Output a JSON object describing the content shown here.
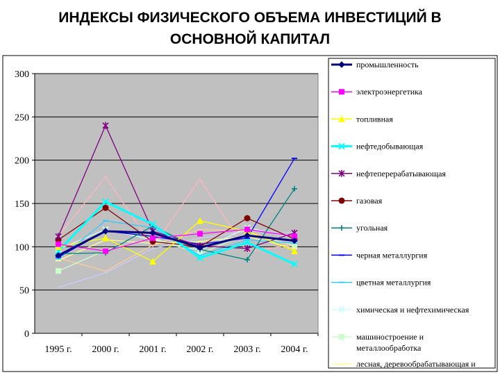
{
  "slide": {
    "title_line1": "ИНДЕКСЫ ФИЗИЧЕСКОГО ОБЪЕМА ИНВЕСТИЦИЙ В",
    "title_line2": "ОСНОВНОЙ КАПИТАЛ"
  },
  "chart_data": {
    "type": "line",
    "title": "",
    "xlabel": "",
    "ylabel": "",
    "ylim": [
      0,
      300
    ],
    "yticks": [
      0,
      50,
      100,
      150,
      200,
      250,
      300
    ],
    "grid": true,
    "plot_background": "#c0c0c0",
    "legend_position": "right",
    "categories": [
      "1995 г.",
      "2000 г.",
      "2001 г.",
      "2002 г.",
      "2003 г.",
      "2004 г."
    ],
    "series": [
      {
        "name": "промышленность",
        "color": "#000080",
        "marker": "diamond",
        "values": [
          90,
          118,
          116,
          99,
          113,
          107
        ]
      },
      {
        "name": "электроэнергетика",
        "color": "#ff00ff",
        "marker": "square",
        "values": [
          103,
          95,
          110,
          115,
          120,
          112
        ]
      },
      {
        "name": "топливная",
        "color": "#ffff00",
        "marker": "triangle",
        "values": [
          100,
          110,
          83,
          130,
          118,
          95
        ]
      },
      {
        "name": "нефтедобывающая",
        "color": "#00ffff",
        "marker": "x",
        "values": [
          95,
          152,
          126,
          87,
          105,
          80
        ]
      },
      {
        "name": "нефтеперерабатывающая",
        "color": "#800080",
        "marker": "star",
        "values": [
          112,
          240,
          118,
          101,
          98,
          116
        ]
      },
      {
        "name": "газовая",
        "color": "#800000",
        "marker": "circle",
        "values": [
          108,
          145,
          106,
          100,
          133,
          109
        ]
      },
      {
        "name": "угольная",
        "color": "#008080",
        "marker": "plus",
        "values": [
          92,
          93,
          124,
          97,
          85,
          167
        ]
      },
      {
        "name": "черная металлургия",
        "color": "#0000ff",
        "marker": "dash",
        "values": [
          88,
          118,
          112,
          103,
          110,
          202
        ]
      },
      {
        "name": "цветная металлургия",
        "color": "#33ccff",
        "marker": "dash",
        "values": [
          86,
          130,
          122,
          90,
          108,
          104
        ]
      },
      {
        "name": "химическая и нефтехимическая",
        "color": "#ccffff",
        "marker": "x",
        "values": [
          97,
          120,
          108,
          96,
          122,
          110
        ]
      },
      {
        "name": "машиностроение и металлообработка",
        "color": "#ccffcc",
        "marker": "square",
        "values": [
          72,
          96,
          110,
          92,
          115,
          102
        ]
      },
      {
        "name": "лесная, деревообрабатывающая и",
        "color": "#ffff99",
        "marker": "dash",
        "values": [
          84,
          108,
          104,
          106,
          112,
          98
        ]
      },
      {
        "name": "",
        "color": "#ffcc99",
        "marker": "none",
        "values": [
          87,
          72,
          102,
          120,
          118,
          100
        ]
      },
      {
        "name": "",
        "color": "#ffb6c1",
        "marker": "none",
        "values": [
          112,
          181,
          100,
          178,
          94,
          103
        ]
      },
      {
        "name": "",
        "color": "#ccccff",
        "marker": "none",
        "values": [
          53,
          70,
          98,
          110,
          118,
          116
        ]
      }
    ]
  }
}
